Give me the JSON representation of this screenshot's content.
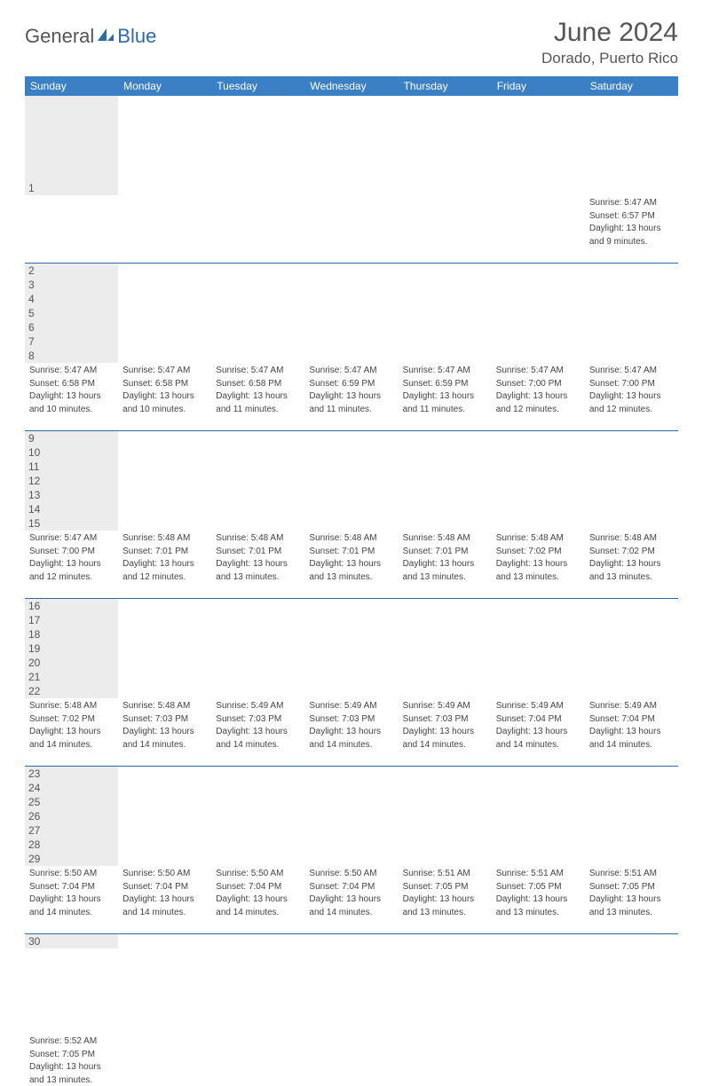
{
  "brand": {
    "name_part1": "General",
    "name_part2": "Blue"
  },
  "title": "June 2024",
  "location": "Dorado, Puerto Rico",
  "header_bg": "#3b7fc4",
  "accent": "#2f6aa8",
  "day_bg": "#ececec",
  "text_color": "#555555",
  "days_of_week": [
    "Sunday",
    "Monday",
    "Tuesday",
    "Wednesday",
    "Thursday",
    "Friday",
    "Saturday"
  ],
  "weeks": [
    [
      null,
      null,
      null,
      null,
      null,
      null,
      {
        "n": "1",
        "sr": "Sunrise: 5:47 AM",
        "ss": "Sunset: 6:57 PM",
        "d1": "Daylight: 13 hours",
        "d2": "and 9 minutes."
      }
    ],
    [
      {
        "n": "2",
        "sr": "Sunrise: 5:47 AM",
        "ss": "Sunset: 6:58 PM",
        "d1": "Daylight: 13 hours",
        "d2": "and 10 minutes."
      },
      {
        "n": "3",
        "sr": "Sunrise: 5:47 AM",
        "ss": "Sunset: 6:58 PM",
        "d1": "Daylight: 13 hours",
        "d2": "and 10 minutes."
      },
      {
        "n": "4",
        "sr": "Sunrise: 5:47 AM",
        "ss": "Sunset: 6:58 PM",
        "d1": "Daylight: 13 hours",
        "d2": "and 11 minutes."
      },
      {
        "n": "5",
        "sr": "Sunrise: 5:47 AM",
        "ss": "Sunset: 6:59 PM",
        "d1": "Daylight: 13 hours",
        "d2": "and 11 minutes."
      },
      {
        "n": "6",
        "sr": "Sunrise: 5:47 AM",
        "ss": "Sunset: 6:59 PM",
        "d1": "Daylight: 13 hours",
        "d2": "and 11 minutes."
      },
      {
        "n": "7",
        "sr": "Sunrise: 5:47 AM",
        "ss": "Sunset: 7:00 PM",
        "d1": "Daylight: 13 hours",
        "d2": "and 12 minutes."
      },
      {
        "n": "8",
        "sr": "Sunrise: 5:47 AM",
        "ss": "Sunset: 7:00 PM",
        "d1": "Daylight: 13 hours",
        "d2": "and 12 minutes."
      }
    ],
    [
      {
        "n": "9",
        "sr": "Sunrise: 5:47 AM",
        "ss": "Sunset: 7:00 PM",
        "d1": "Daylight: 13 hours",
        "d2": "and 12 minutes."
      },
      {
        "n": "10",
        "sr": "Sunrise: 5:48 AM",
        "ss": "Sunset: 7:01 PM",
        "d1": "Daylight: 13 hours",
        "d2": "and 12 minutes."
      },
      {
        "n": "11",
        "sr": "Sunrise: 5:48 AM",
        "ss": "Sunset: 7:01 PM",
        "d1": "Daylight: 13 hours",
        "d2": "and 13 minutes."
      },
      {
        "n": "12",
        "sr": "Sunrise: 5:48 AM",
        "ss": "Sunset: 7:01 PM",
        "d1": "Daylight: 13 hours",
        "d2": "and 13 minutes."
      },
      {
        "n": "13",
        "sr": "Sunrise: 5:48 AM",
        "ss": "Sunset: 7:01 PM",
        "d1": "Daylight: 13 hours",
        "d2": "and 13 minutes."
      },
      {
        "n": "14",
        "sr": "Sunrise: 5:48 AM",
        "ss": "Sunset: 7:02 PM",
        "d1": "Daylight: 13 hours",
        "d2": "and 13 minutes."
      },
      {
        "n": "15",
        "sr": "Sunrise: 5:48 AM",
        "ss": "Sunset: 7:02 PM",
        "d1": "Daylight: 13 hours",
        "d2": "and 13 minutes."
      }
    ],
    [
      {
        "n": "16",
        "sr": "Sunrise: 5:48 AM",
        "ss": "Sunset: 7:02 PM",
        "d1": "Daylight: 13 hours",
        "d2": "and 14 minutes."
      },
      {
        "n": "17",
        "sr": "Sunrise: 5:48 AM",
        "ss": "Sunset: 7:03 PM",
        "d1": "Daylight: 13 hours",
        "d2": "and 14 minutes."
      },
      {
        "n": "18",
        "sr": "Sunrise: 5:49 AM",
        "ss": "Sunset: 7:03 PM",
        "d1": "Daylight: 13 hours",
        "d2": "and 14 minutes."
      },
      {
        "n": "19",
        "sr": "Sunrise: 5:49 AM",
        "ss": "Sunset: 7:03 PM",
        "d1": "Daylight: 13 hours",
        "d2": "and 14 minutes."
      },
      {
        "n": "20",
        "sr": "Sunrise: 5:49 AM",
        "ss": "Sunset: 7:03 PM",
        "d1": "Daylight: 13 hours",
        "d2": "and 14 minutes."
      },
      {
        "n": "21",
        "sr": "Sunrise: 5:49 AM",
        "ss": "Sunset: 7:04 PM",
        "d1": "Daylight: 13 hours",
        "d2": "and 14 minutes."
      },
      {
        "n": "22",
        "sr": "Sunrise: 5:49 AM",
        "ss": "Sunset: 7:04 PM",
        "d1": "Daylight: 13 hours",
        "d2": "and 14 minutes."
      }
    ],
    [
      {
        "n": "23",
        "sr": "Sunrise: 5:50 AM",
        "ss": "Sunset: 7:04 PM",
        "d1": "Daylight: 13 hours",
        "d2": "and 14 minutes."
      },
      {
        "n": "24",
        "sr": "Sunrise: 5:50 AM",
        "ss": "Sunset: 7:04 PM",
        "d1": "Daylight: 13 hours",
        "d2": "and 14 minutes."
      },
      {
        "n": "25",
        "sr": "Sunrise: 5:50 AM",
        "ss": "Sunset: 7:04 PM",
        "d1": "Daylight: 13 hours",
        "d2": "and 14 minutes."
      },
      {
        "n": "26",
        "sr": "Sunrise: 5:50 AM",
        "ss": "Sunset: 7:04 PM",
        "d1": "Daylight: 13 hours",
        "d2": "and 14 minutes."
      },
      {
        "n": "27",
        "sr": "Sunrise: 5:51 AM",
        "ss": "Sunset: 7:05 PM",
        "d1": "Daylight: 13 hours",
        "d2": "and 13 minutes."
      },
      {
        "n": "28",
        "sr": "Sunrise: 5:51 AM",
        "ss": "Sunset: 7:05 PM",
        "d1": "Daylight: 13 hours",
        "d2": "and 13 minutes."
      },
      {
        "n": "29",
        "sr": "Sunrise: 5:51 AM",
        "ss": "Sunset: 7:05 PM",
        "d1": "Daylight: 13 hours",
        "d2": "and 13 minutes."
      }
    ],
    [
      {
        "n": "30",
        "sr": "Sunrise: 5:52 AM",
        "ss": "Sunset: 7:05 PM",
        "d1": "Daylight: 13 hours",
        "d2": "and 13 minutes."
      },
      null,
      null,
      null,
      null,
      null,
      null
    ]
  ]
}
